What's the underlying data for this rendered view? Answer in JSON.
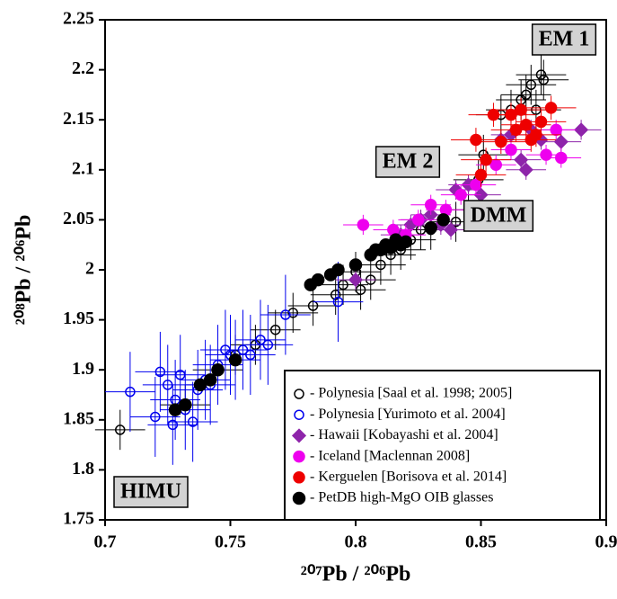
{
  "chart_data": {
    "type": "scatter",
    "x_label": "²⁰⁷Pb / ²⁰⁶Pb",
    "y_label": "²⁰⁸Pb / ²⁰⁶Pb",
    "xlim": [
      0.7,
      0.9
    ],
    "ylim": [
      1.75,
      2.25
    ],
    "xticks": [
      0.7,
      0.75,
      0.8,
      0.85,
      0.9
    ],
    "yticks": [
      1.75,
      1.8,
      1.85,
      1.9,
      1.95,
      2,
      2.05,
      2.1,
      2.15,
      2.2,
      2.25
    ],
    "annotations": [
      "EM 1",
      "EM 2",
      "DMM",
      "HIMU"
    ],
    "series": [
      {
        "name": "- Polynesia [Saal et al. 1998; 2005]",
        "color": "#000000",
        "marker": "circle",
        "filled": false,
        "xerr": 0.01,
        "yerr": 0.02,
        "x": [
          0.706,
          0.732,
          0.745,
          0.752,
          0.76,
          0.768,
          0.775,
          0.783,
          0.792,
          0.795,
          0.8,
          0.802,
          0.806,
          0.81,
          0.814,
          0.818,
          0.822,
          0.826,
          0.83,
          0.84,
          0.845,
          0.849,
          0.851,
          0.858,
          0.862,
          0.866,
          0.868,
          0.87,
          0.872,
          0.874,
          0.875
        ],
        "y": [
          1.84,
          1.865,
          1.9,
          1.915,
          1.925,
          1.94,
          1.957,
          1.964,
          1.975,
          1.985,
          1.998,
          1.98,
          1.99,
          2.005,
          2.015,
          2.02,
          2.03,
          2.04,
          2.04,
          2.048,
          2.06,
          2.09,
          2.115,
          2.155,
          2.16,
          2.17,
          2.175,
          2.185,
          2.16,
          2.195,
          2.19
        ]
      },
      {
        "name": "- Polynesia [Yurimoto et al. 2004]",
        "color": "#0000ee",
        "marker": "circle",
        "filled": false,
        "xerr": 0.01,
        "yerr": 0.04,
        "x": [
          0.71,
          0.72,
          0.722,
          0.725,
          0.727,
          0.728,
          0.73,
          0.732,
          0.735,
          0.737,
          0.74,
          0.742,
          0.745,
          0.748,
          0.75,
          0.752,
          0.755,
          0.758,
          0.762,
          0.765,
          0.772,
          0.793
        ],
        "y": [
          1.878,
          1.853,
          1.898,
          1.885,
          1.845,
          1.87,
          1.895,
          1.86,
          1.848,
          1.88,
          1.89,
          1.885,
          1.905,
          1.92,
          1.915,
          1.91,
          1.92,
          1.915,
          1.93,
          1.925,
          1.955,
          1.968
        ]
      },
      {
        "name": "- Hawaii [Kobayashi et al. 2004]",
        "color": "#8e24aa",
        "marker": "diamond",
        "filled": true,
        "xerr": 0.008,
        "yerr": 0.01,
        "x": [
          0.8,
          0.818,
          0.822,
          0.826,
          0.83,
          0.834,
          0.838,
          0.84,
          0.845,
          0.85,
          0.858,
          0.862,
          0.866,
          0.868,
          0.87,
          0.874,
          0.882,
          0.89
        ],
        "y": [
          1.99,
          2.035,
          2.045,
          2.05,
          2.055,
          2.045,
          2.04,
          2.08,
          2.085,
          2.075,
          2.13,
          2.135,
          2.11,
          2.1,
          2.14,
          2.13,
          2.128,
          2.14
        ]
      },
      {
        "name": "- Iceland [Maclennan 2008]",
        "color": "#ee00ee",
        "marker": "circle",
        "filled": true,
        "xerr": 0.008,
        "yerr": 0.01,
        "x": [
          0.803,
          0.815,
          0.82,
          0.825,
          0.83,
          0.836,
          0.842,
          0.848,
          0.856,
          0.862,
          0.876,
          0.88,
          0.882
        ],
        "y": [
          2.045,
          2.04,
          2.035,
          2.05,
          2.065,
          2.06,
          2.075,
          2.085,
          2.105,
          2.12,
          2.115,
          2.14,
          2.112
        ]
      },
      {
        "name": "- Kerguelen [Borisova et al. 2014]",
        "color": "#ee0000",
        "marker": "circle",
        "filled": true,
        "xerr": 0.01,
        "yerr": 0.012,
        "x": [
          0.848,
          0.85,
          0.852,
          0.855,
          0.858,
          0.862,
          0.864,
          0.866,
          0.868,
          0.87,
          0.872,
          0.874,
          0.878
        ],
        "y": [
          2.13,
          2.095,
          2.11,
          2.155,
          2.128,
          2.155,
          2.14,
          2.16,
          2.145,
          2.13,
          2.135,
          2.148,
          2.162
        ]
      },
      {
        "name": "- PetDB high-MgO OIB glasses",
        "color": "#000000",
        "marker": "large-circle",
        "filled": true,
        "x": [
          0.728,
          0.732,
          0.738,
          0.742,
          0.745,
          0.752,
          0.782,
          0.785,
          0.79,
          0.793,
          0.8,
          0.806,
          0.808,
          0.81,
          0.812,
          0.814,
          0.816,
          0.818,
          0.82,
          0.83,
          0.835
        ],
        "y": [
          1.86,
          1.865,
          1.885,
          1.89,
          1.9,
          1.91,
          1.985,
          1.99,
          1.995,
          2.0,
          2.005,
          2.015,
          2.02,
          2.02,
          2.025,
          2.022,
          2.03,
          2.025,
          2.028,
          2.042,
          2.05
        ]
      }
    ]
  }
}
